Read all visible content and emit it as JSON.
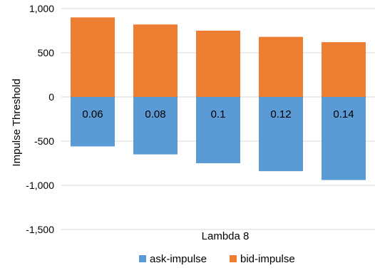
{
  "chart_data": {
    "type": "bar",
    "stacked": true,
    "categories": [
      "0.06",
      "0.08",
      "0.1",
      "0.12",
      "0.14"
    ],
    "series": [
      {
        "name": "ask-impulse",
        "color": "#5b9bd5",
        "values": [
          -560,
          -650,
          -750,
          -840,
          -940
        ]
      },
      {
        "name": "bid-impulse",
        "color": "#ed7d31",
        "values": [
          900,
          820,
          750,
          680,
          620
        ]
      }
    ],
    "xlabel": "Lambda 8",
    "ylabel": "Impulse Threshold",
    "ylim": [
      -1500,
      1000
    ],
    "yticks": [
      {
        "value": 1000,
        "label": "1,000"
      },
      {
        "value": 500,
        "label": "500"
      },
      {
        "value": 0,
        "label": "0"
      },
      {
        "value": -500,
        "label": "-500"
      },
      {
        "value": -1000,
        "label": "-1,000"
      },
      {
        "value": -1500,
        "label": "-1,500"
      }
    ],
    "grid": true,
    "legend": "bottom",
    "gridline_color": "#d9d9d9"
  }
}
